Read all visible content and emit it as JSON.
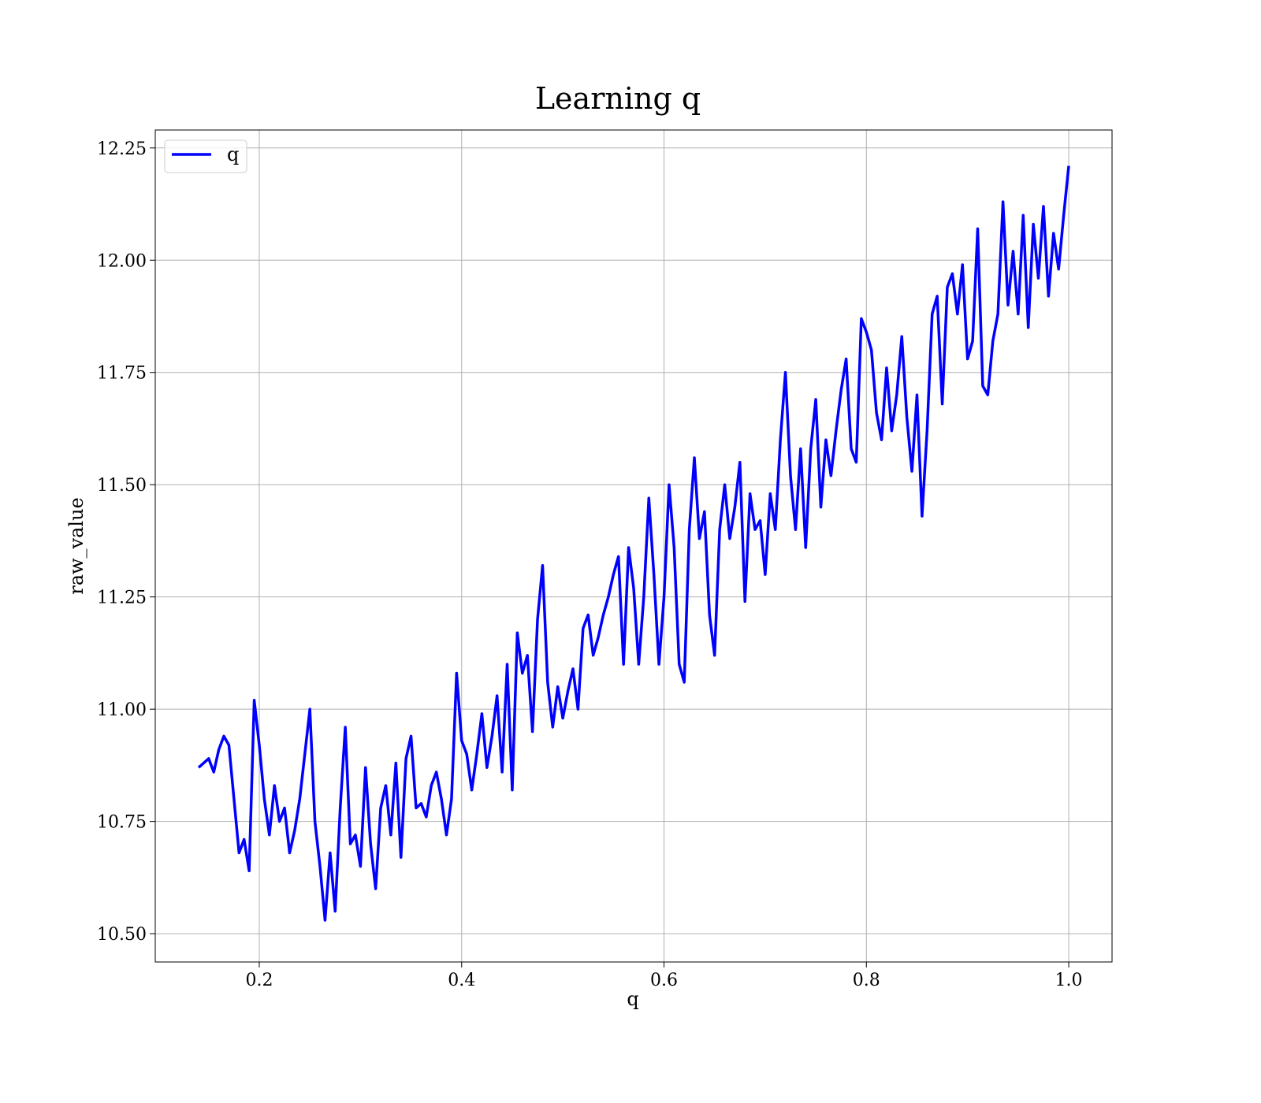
{
  "chart_data": {
    "type": "line",
    "title": "Learning q",
    "x_label": "q",
    "y_label": "raw_value",
    "x": [
      0.14,
      0.145,
      0.15,
      0.155,
      0.16,
      0.165,
      0.17,
      0.175,
      0.18,
      0.185,
      0.19,
      0.195,
      0.2,
      0.205,
      0.21,
      0.215,
      0.22,
      0.225,
      0.23,
      0.235,
      0.24,
      0.245,
      0.25,
      0.255,
      0.26,
      0.265,
      0.27,
      0.275,
      0.28,
      0.285,
      0.29,
      0.295,
      0.3,
      0.305,
      0.31,
      0.315,
      0.32,
      0.325,
      0.33,
      0.335,
      0.34,
      0.345,
      0.35,
      0.355,
      0.36,
      0.365,
      0.37,
      0.375,
      0.38,
      0.385,
      0.39,
      0.395,
      0.4,
      0.405,
      0.41,
      0.415,
      0.42,
      0.425,
      0.43,
      0.435,
      0.44,
      0.445,
      0.45,
      0.455,
      0.46,
      0.465,
      0.47,
      0.475,
      0.48,
      0.485,
      0.49,
      0.495,
      0.5,
      0.505,
      0.51,
      0.515,
      0.52,
      0.525,
      0.53,
      0.535,
      0.54,
      0.545,
      0.55,
      0.555,
      0.56,
      0.565,
      0.57,
      0.575,
      0.58,
      0.585,
      0.59,
      0.595,
      0.6,
      0.605,
      0.61,
      0.615,
      0.62,
      0.625,
      0.63,
      0.635,
      0.64,
      0.645,
      0.65,
      0.655,
      0.66,
      0.665,
      0.67,
      0.675,
      0.68,
      0.685,
      0.69,
      0.695,
      0.7,
      0.705,
      0.71,
      0.715,
      0.72,
      0.725,
      0.73,
      0.735,
      0.74,
      0.745,
      0.75,
      0.755,
      0.76,
      0.765,
      0.77,
      0.775,
      0.78,
      0.785,
      0.79,
      0.795,
      0.8,
      0.805,
      0.81,
      0.815,
      0.82,
      0.825,
      0.83,
      0.835,
      0.84,
      0.845,
      0.85,
      0.855,
      0.86,
      0.865,
      0.87,
      0.875,
      0.88,
      0.885,
      0.89,
      0.895,
      0.9,
      0.905,
      0.91,
      0.915,
      0.92,
      0.925,
      0.93,
      0.935,
      0.94,
      0.945,
      0.95,
      0.955,
      0.96,
      0.965,
      0.97,
      0.975,
      0.98,
      0.985,
      0.99,
      0.995,
      1.0
    ],
    "series": [
      {
        "name": "q",
        "color": "#0000ff",
        "values": [
          10.87,
          10.88,
          10.89,
          10.86,
          10.91,
          10.94,
          10.92,
          10.8,
          10.68,
          10.71,
          10.64,
          11.02,
          10.92,
          10.8,
          10.72,
          10.83,
          10.75,
          10.78,
          10.68,
          10.73,
          10.8,
          10.9,
          11.0,
          10.75,
          10.65,
          10.53,
          10.68,
          10.55,
          10.78,
          10.96,
          10.7,
          10.72,
          10.65,
          10.87,
          10.7,
          10.6,
          10.78,
          10.83,
          10.72,
          10.88,
          10.67,
          10.89,
          10.94,
          10.78,
          10.79,
          10.76,
          10.83,
          10.86,
          10.8,
          10.72,
          10.8,
          11.08,
          10.93,
          10.9,
          10.82,
          10.9,
          10.99,
          10.87,
          10.94,
          11.03,
          10.86,
          11.1,
          10.82,
          11.17,
          11.08,
          11.12,
          10.95,
          11.2,
          11.32,
          11.06,
          10.96,
          11.05,
          10.98,
          11.04,
          11.09,
          11.0,
          11.18,
          11.21,
          11.12,
          11.16,
          11.21,
          11.25,
          11.3,
          11.34,
          11.1,
          11.36,
          11.27,
          11.1,
          11.25,
          11.47,
          11.3,
          11.1,
          11.25,
          11.5,
          11.36,
          11.1,
          11.06,
          11.4,
          11.56,
          11.38,
          11.44,
          11.21,
          11.12,
          11.4,
          11.5,
          11.38,
          11.45,
          11.55,
          11.24,
          11.48,
          11.4,
          11.42,
          11.3,
          11.48,
          11.4,
          11.6,
          11.75,
          11.52,
          11.4,
          11.58,
          11.36,
          11.58,
          11.69,
          11.45,
          11.6,
          11.52,
          11.62,
          11.71,
          11.78,
          11.58,
          11.55,
          11.87,
          11.84,
          11.8,
          11.66,
          11.6,
          11.76,
          11.62,
          11.7,
          11.83,
          11.65,
          11.53,
          11.7,
          11.43,
          11.62,
          11.88,
          11.92,
          11.68,
          11.94,
          11.97,
          11.88,
          11.99,
          11.78,
          11.82,
          12.07,
          11.72,
          11.7,
          11.82,
          11.88,
          12.13,
          11.9,
          12.02,
          11.88,
          12.1,
          11.85,
          12.08,
          11.96,
          12.12,
          11.92,
          12.06,
          11.98,
          12.1,
          12.21
        ]
      }
    ],
    "xlim": [
      0.0972,
      1.0428
    ],
    "ylim": [
      10.437,
      12.29
    ],
    "xticks": [
      0.2,
      0.4,
      0.6,
      0.8,
      {
        "value": 1.0,
        "label": "1.0"
      }
    ],
    "yticks": [
      {
        "value": 10.5,
        "label": "10.50"
      },
      10.75,
      {
        "value": 11.0,
        "label": "11.00"
      },
      11.25,
      {
        "value": 11.5,
        "label": "11.50"
      },
      11.75,
      {
        "value": 12.0,
        "label": "12.00"
      },
      12.25
    ],
    "grid": true,
    "legend": "upper left"
  }
}
